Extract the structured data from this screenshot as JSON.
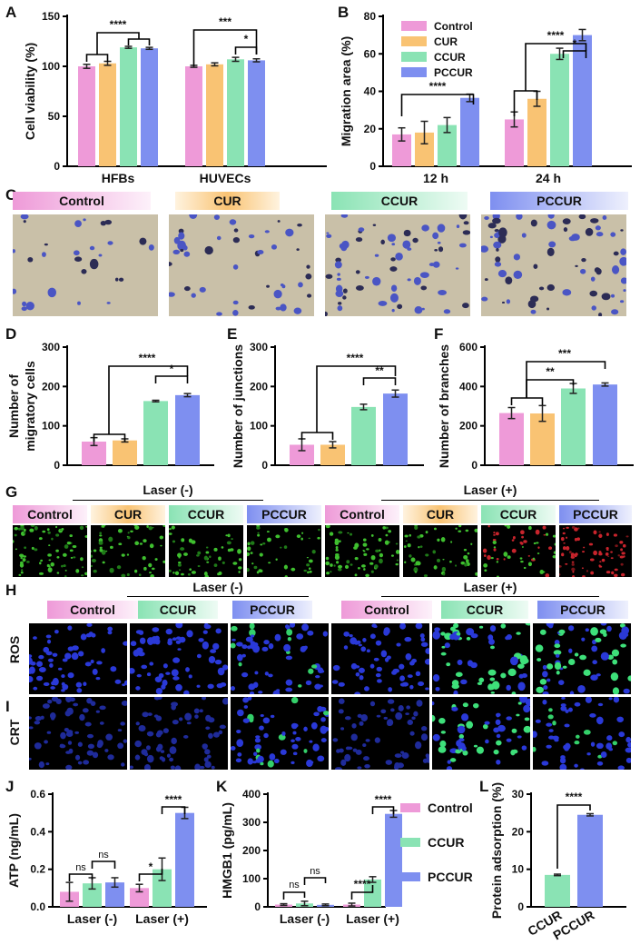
{
  "panels": {
    "A": "A",
    "B": "B",
    "C": "C",
    "D": "D",
    "E": "E",
    "F": "F",
    "G": "G",
    "H": "H",
    "I": "I",
    "J": "J",
    "K": "K",
    "L": "L"
  },
  "colors": {
    "Control": "#ee9ad8",
    "CUR": "#f9c373",
    "CCUR": "#8ae3b4",
    "PCCUR": "#7e8ff0"
  },
  "groups4": [
    "Control",
    "CUR",
    "CCUR",
    "PCCUR"
  ],
  "groups3": [
    "Control",
    "CCUR",
    "PCCUR"
  ],
  "laser_minus": "Laser (-)",
  "laser_plus": "Laser (+)",
  "row_ros": "ROS",
  "row_crt": "CRT",
  "chart_data": [
    {
      "id": "A",
      "type": "bar",
      "categories": [
        "HFBs",
        "HUVECs"
      ],
      "ylabel": "Cell viability (%)",
      "ylim": [
        0,
        150
      ],
      "yticks": [
        0,
        50,
        100,
        150
      ],
      "series": [
        {
          "name": "Control",
          "values": [
            100,
            100
          ],
          "err": [
            2,
            1
          ]
        },
        {
          "name": "CUR",
          "values": [
            103,
            102
          ],
          "err": [
            2,
            1.5
          ]
        },
        {
          "name": "CCUR",
          "values": [
            119,
            107
          ],
          "err": [
            1,
            2
          ]
        },
        {
          "name": "PCCUR",
          "values": [
            118,
            106
          ],
          "err": [
            1,
            1.5
          ]
        }
      ],
      "annotations": [
        "****",
        "***",
        "*"
      ]
    },
    {
      "id": "B",
      "type": "bar",
      "categories": [
        "12 h",
        "24 h"
      ],
      "ylabel": "Migration area (%)",
      "ylim": [
        0,
        80
      ],
      "yticks": [
        0,
        20,
        40,
        60,
        80
      ],
      "legend": "top-left",
      "series": [
        {
          "name": "Control",
          "values": [
            17,
            25
          ],
          "err": [
            3.5,
            4
          ]
        },
        {
          "name": "CUR",
          "values": [
            18,
            36
          ],
          "err": [
            6,
            4
          ]
        },
        {
          "name": "CCUR",
          "values": [
            22,
            60
          ],
          "err": [
            4,
            3
          ]
        },
        {
          "name": "PCCUR",
          "values": [
            36.5,
            70
          ],
          "err": [
            2,
            3
          ]
        }
      ],
      "annotations": [
        "****",
        "****",
        "*"
      ]
    },
    {
      "id": "D",
      "type": "bar",
      "categories": [
        "Control",
        "CUR",
        "CCUR",
        "PCCUR"
      ],
      "ylabel": "Number of migratory cells",
      "ylim": [
        0,
        300
      ],
      "yticks": [
        0,
        100,
        200,
        300
      ],
      "values": [
        60,
        63,
        163,
        178
      ],
      "err": [
        10,
        4,
        2,
        4
      ],
      "annotations": [
        "****",
        "*"
      ]
    },
    {
      "id": "E",
      "type": "bar",
      "categories": [
        "Control",
        "CUR",
        "CCUR",
        "PCCUR"
      ],
      "ylabel": "Number of junctions",
      "ylim": [
        0,
        300
      ],
      "yticks": [
        0,
        100,
        200,
        300
      ],
      "values": [
        52,
        52,
        148,
        182
      ],
      "err": [
        15,
        8,
        7,
        9
      ],
      "annotations": [
        "****",
        "**"
      ]
    },
    {
      "id": "F",
      "type": "bar",
      "categories": [
        "Control",
        "CUR",
        "CCUR",
        "PCCUR"
      ],
      "ylabel": "Number of branches",
      "ylim": [
        0,
        600
      ],
      "yticks": [
        0,
        200,
        400,
        600
      ],
      "values": [
        265,
        263,
        390,
        410
      ],
      "err": [
        28,
        40,
        25,
        8
      ],
      "annotations": [
        "***",
        "**"
      ]
    },
    {
      "id": "J",
      "type": "bar",
      "categories": [
        "Laser (-)",
        "Laser (+)"
      ],
      "ylabel": "ATP (ng/mL)",
      "ylim": [
        0,
        0.6
      ],
      "yticks": [
        0.0,
        0.2,
        0.4,
        0.6
      ],
      "series": [
        {
          "name": "Control",
          "values": [
            0.08,
            0.1
          ],
          "err": [
            0.05,
            0.02
          ]
        },
        {
          "name": "CCUR",
          "values": [
            0.125,
            0.2
          ],
          "err": [
            0.03,
            0.06
          ]
        },
        {
          "name": "PCCUR",
          "values": [
            0.13,
            0.5
          ],
          "err": [
            0.025,
            0.03
          ]
        }
      ],
      "annotations": [
        "ns",
        "ns",
        "*",
        "****"
      ]
    },
    {
      "id": "K",
      "type": "bar",
      "categories": [
        "Laser (-)",
        "Laser (+)"
      ],
      "ylabel": "HMGB1 (pg/mL)",
      "ylim": [
        0,
        400
      ],
      "yticks": [
        0,
        100,
        200,
        300,
        400
      ],
      "legend": "right",
      "series": [
        {
          "name": "Control",
          "values": [
            8,
            8
          ],
          "err": [
            3,
            5
          ]
        },
        {
          "name": "CCUR",
          "values": [
            12,
            97
          ],
          "err": [
            8,
            10
          ]
        },
        {
          "name": "PCCUR",
          "values": [
            7,
            330
          ],
          "err": [
            3,
            12
          ]
        }
      ],
      "annotations": [
        "ns",
        "ns",
        "****",
        "****"
      ]
    },
    {
      "id": "L",
      "type": "bar",
      "categories": [
        "CCUR",
        "PCCUR"
      ],
      "ylabel": "Protein adsorption (%)",
      "ylim": [
        0,
        30
      ],
      "yticks": [
        0,
        10,
        20,
        30
      ],
      "values": [
        8.5,
        24.5
      ],
      "err": [
        0.2,
        0.3
      ],
      "annotations": [
        "****"
      ]
    }
  ]
}
